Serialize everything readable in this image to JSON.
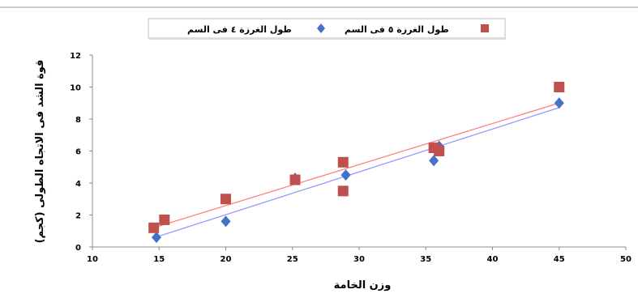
{
  "chart_data": {
    "type": "scatter",
    "xlabel": "وزن الخامة",
    "ylabel": "قوة الشد فى الاتجاه الطولى (كجم)",
    "xlim": [
      10,
      50
    ],
    "ylim": [
      0,
      12
    ],
    "xticks": [
      10,
      15,
      20,
      25,
      30,
      35,
      40,
      45,
      50
    ],
    "yticks": [
      0,
      2,
      4,
      6,
      8,
      10,
      12
    ],
    "grid": false,
    "legend_position": "top",
    "series": [
      {
        "name": "طول الغرزة ٤ فى السم",
        "marker": "diamond",
        "color": "#4472c4",
        "trend_color": "#9999ff",
        "points": [
          [
            14.8,
            0.6
          ],
          [
            20,
            1.6
          ],
          [
            25.2,
            4.3
          ],
          [
            29,
            4.5
          ],
          [
            35.6,
            5.4
          ],
          [
            36,
            6.3
          ],
          [
            45,
            9.0
          ]
        ]
      },
      {
        "name": "طول الغرزة ٥ فى السم",
        "marker": "square",
        "color": "#c0504d",
        "trend_color": "#ff7f7f",
        "points": [
          [
            14.6,
            1.2
          ],
          [
            15.4,
            1.7
          ],
          [
            20,
            3.0
          ],
          [
            25.2,
            4.2
          ],
          [
            28.8,
            5.3
          ],
          [
            28.8,
            3.5
          ],
          [
            35.6,
            6.2
          ],
          [
            36,
            6.0
          ],
          [
            45,
            10.0
          ]
        ]
      }
    ]
  }
}
